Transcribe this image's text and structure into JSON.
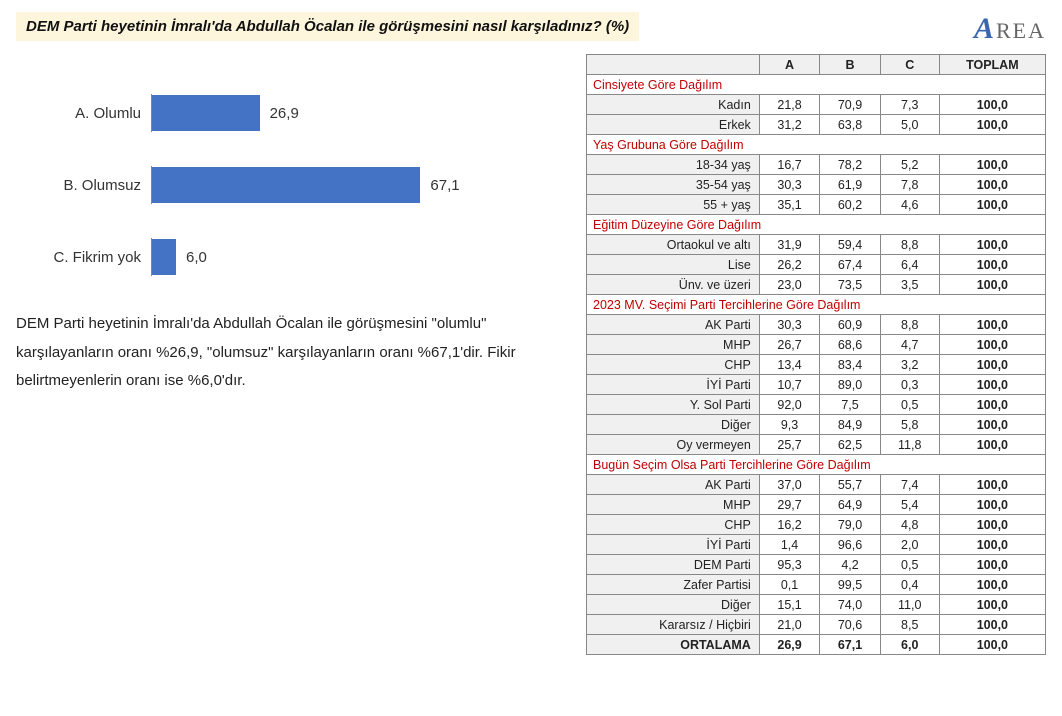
{
  "logo": {
    "big": "A",
    "rest": "REA"
  },
  "question": "DEM Parti heyetinin İmralı'da Abdullah Öcalan ile görüşmesini nasıl karşıladınız? (%)",
  "chart": {
    "type": "bar-horizontal",
    "bar_color": "#4472c4",
    "label_fontsize": 15,
    "value_fontsize": 15,
    "max_value": 100,
    "items": [
      {
        "label": "A. Olumlu",
        "value": "26,9",
        "pct": 26.9
      },
      {
        "label": "B. Olumsuz",
        "value": "67,1",
        "pct": 67.1
      },
      {
        "label": "C. Fikrim yok",
        "value": "6,0",
        "pct": 6.0
      }
    ]
  },
  "summary_text": "DEM Parti heyetinin İmralı'da Abdullah Öcalan ile görüşmesini \"olumlu\" karşılayanların oranı %26,9, \"olumsuz\" karşılayanların oranı %67,1'dir. Fikir belirtmeyenlerin oranı ise %6,0'dır.",
  "table": {
    "headers": [
      "",
      "A",
      "B",
      "C",
      "TOPLAM"
    ],
    "groups": [
      {
        "title": "Cinsiyete Göre Dağılım",
        "rows": [
          {
            "label": "Kadın",
            "a": "21,8",
            "b": "70,9",
            "c": "7,3",
            "t": "100,0"
          },
          {
            "label": "Erkek",
            "a": "31,2",
            "b": "63,8",
            "c": "5,0",
            "t": "100,0"
          }
        ]
      },
      {
        "title": "Yaş Grubuna Göre Dağılım",
        "rows": [
          {
            "label": "18-34 yaş",
            "a": "16,7",
            "b": "78,2",
            "c": "5,2",
            "t": "100,0"
          },
          {
            "label": "35-54 yaş",
            "a": "30,3",
            "b": "61,9",
            "c": "7,8",
            "t": "100,0"
          },
          {
            "label": "55 + yaş",
            "a": "35,1",
            "b": "60,2",
            "c": "4,6",
            "t": "100,0"
          }
        ]
      },
      {
        "title": "Eğitim Düzeyine Göre Dağılım",
        "rows": [
          {
            "label": "Ortaokul ve altı",
            "a": "31,9",
            "b": "59,4",
            "c": "8,8",
            "t": "100,0"
          },
          {
            "label": "Lise",
            "a": "26,2",
            "b": "67,4",
            "c": "6,4",
            "t": "100,0"
          },
          {
            "label": "Ünv. ve üzeri",
            "a": "23,0",
            "b": "73,5",
            "c": "3,5",
            "t": "100,0"
          }
        ]
      },
      {
        "title": "2023 MV. Seçimi Parti Tercihlerine Göre Dağılım",
        "rows": [
          {
            "label": "AK Parti",
            "a": "30,3",
            "b": "60,9",
            "c": "8,8",
            "t": "100,0"
          },
          {
            "label": "MHP",
            "a": "26,7",
            "b": "68,6",
            "c": "4,7",
            "t": "100,0"
          },
          {
            "label": "CHP",
            "a": "13,4",
            "b": "83,4",
            "c": "3,2",
            "t": "100,0"
          },
          {
            "label": "İYİ Parti",
            "a": "10,7",
            "b": "89,0",
            "c": "0,3",
            "t": "100,0"
          },
          {
            "label": "Y. Sol Parti",
            "a": "92,0",
            "b": "7,5",
            "c": "0,5",
            "t": "100,0"
          },
          {
            "label": "Diğer",
            "a": "9,3",
            "b": "84,9",
            "c": "5,8",
            "t": "100,0"
          },
          {
            "label": "Oy vermeyen",
            "a": "25,7",
            "b": "62,5",
            "c": "11,8",
            "t": "100,0"
          }
        ]
      },
      {
        "title": "Bugün Seçim Olsa Parti Tercihlerine Göre Dağılım",
        "rows": [
          {
            "label": "AK Parti",
            "a": "37,0",
            "b": "55,7",
            "c": "7,4",
            "t": "100,0"
          },
          {
            "label": "MHP",
            "a": "29,7",
            "b": "64,9",
            "c": "5,4",
            "t": "100,0"
          },
          {
            "label": "CHP",
            "a": "16,2",
            "b": "79,0",
            "c": "4,8",
            "t": "100,0"
          },
          {
            "label": "İYİ Parti",
            "a": "1,4",
            "b": "96,6",
            "c": "2,0",
            "t": "100,0"
          },
          {
            "label": "DEM Parti",
            "a": "95,3",
            "b": "4,2",
            "c": "0,5",
            "t": "100,0"
          },
          {
            "label": "Zafer Partisi",
            "a": "0,1",
            "b": "99,5",
            "c": "0,4",
            "t": "100,0"
          },
          {
            "label": "Diğer",
            "a": "15,1",
            "b": "74,0",
            "c": "11,0",
            "t": "100,0"
          },
          {
            "label": "Kararsız / Hiçbiri",
            "a": "21,0",
            "b": "70,6",
            "c": "8,5",
            "t": "100,0"
          }
        ]
      }
    ],
    "average": {
      "label": "ORTALAMA",
      "a": "26,9",
      "b": "67,1",
      "c": "6,0",
      "t": "100,0"
    }
  }
}
